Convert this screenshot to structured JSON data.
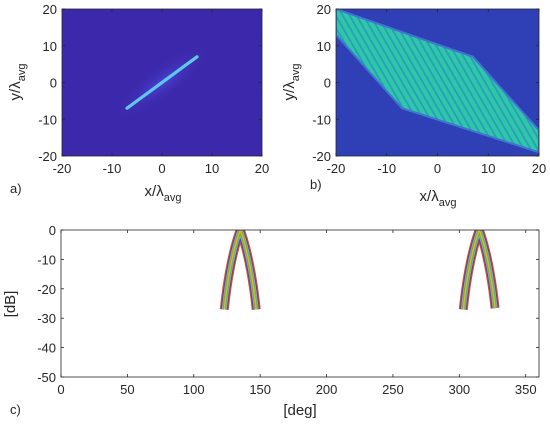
{
  "chart_data": [
    {
      "type": "heatmap",
      "panel_label": "a)",
      "xlabel": "x/λ",
      "xlabel_sub": "avg",
      "ylabel": "y/λ",
      "ylabel_sub": "avg",
      "xlim": [
        -20,
        20
      ],
      "ylim": [
        -20,
        20
      ],
      "xticks": [
        "-20",
        "-10",
        "0",
        "10",
        "20"
      ],
      "yticks": [
        "20",
        "10",
        "0",
        "-10",
        "-20"
      ],
      "xtick_values": [
        -20,
        -10,
        0,
        10,
        20
      ],
      "ytick_values": [
        20,
        10,
        0,
        -10,
        -20
      ],
      "background": "#3c28aa",
      "line_segment": {
        "x": [
          -7,
          7
        ],
        "y": [
          -7,
          7
        ]
      }
    },
    {
      "type": "heatmap",
      "panel_label": "b)",
      "xlabel": "x/λ",
      "xlabel_sub": "avg",
      "ylabel": "y/λ",
      "ylabel_sub": "avg",
      "xlim": [
        -20,
        20
      ],
      "ylim": [
        -20,
        20
      ],
      "xticks": [
        "-20",
        "-10",
        "0",
        "10",
        "20"
      ],
      "yticks": [
        "20",
        "10",
        "0",
        "-10",
        "-20"
      ],
      "xtick_values": [
        -20,
        -10,
        0,
        10,
        20
      ],
      "ytick_values": [
        20,
        10,
        0,
        -10,
        -20
      ],
      "background": "#2f3fb5",
      "field_color": "#2fc7a7",
      "hexagon": {
        "x": [
          -20,
          -7,
          20,
          20,
          7,
          -20
        ],
        "y": [
          13,
          -7,
          -19,
          -13,
          7,
          20
        ]
      }
    },
    {
      "type": "line",
      "panel_label": "c)",
      "xlabel": "[deg]",
      "ylabel": "[dB]",
      "xlim": [
        0,
        360
      ],
      "ylim": [
        -50,
        0
      ],
      "xticks": [
        "0",
        "50",
        "100",
        "150",
        "200",
        "250",
        "300",
        "350"
      ],
      "yticks": [
        "0",
        "-10",
        "-20",
        "-30",
        "-40",
        "-50"
      ],
      "xtick_values": [
        0,
        50,
        100,
        150,
        200,
        250,
        300,
        350
      ],
      "ytick_values": [
        0,
        -10,
        -20,
        -30,
        -40,
        -50
      ],
      "peaks": [
        135,
        315
      ],
      "series": [
        {
          "color": "#d95319",
          "width": 9
        },
        {
          "color": "#7e2f8e",
          "width": 7
        },
        {
          "color": "#4dbeee",
          "width": 5
        },
        {
          "color": "#77ac30",
          "width": 3.2
        },
        {
          "color": "#edb120",
          "width": 1.4
        }
      ]
    }
  ]
}
